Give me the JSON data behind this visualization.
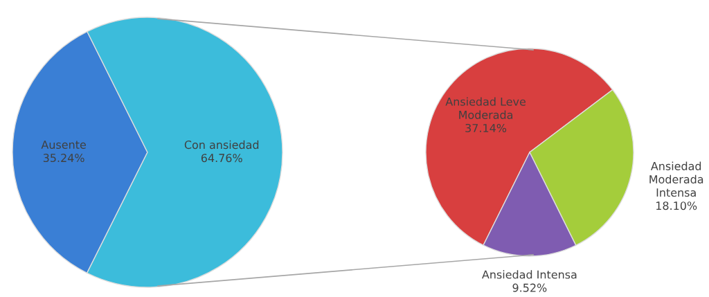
{
  "chart_data": [
    {
      "type": "pie",
      "categories": [
        "Ausente",
        "Con ansiedad"
      ],
      "values": [
        35.24,
        64.76
      ],
      "colors": [
        "#3a7fd5",
        "#3cbcdb"
      ],
      "value_labels": [
        "35.24%",
        "64.76%"
      ]
    },
    {
      "type": "pie",
      "categories": [
        "Ansiedad Leve\nModerada",
        "Ansiedad\nModerada\nIntensa",
        "Ansiedad Intensa"
      ],
      "values": [
        37.14,
        18.1,
        9.52
      ],
      "colors": [
        "#d83f3f",
        "#a4cd3b",
        "#7f5cb1"
      ],
      "value_labels": [
        "37.14%",
        "18.10%",
        "9.52%"
      ]
    }
  ]
}
